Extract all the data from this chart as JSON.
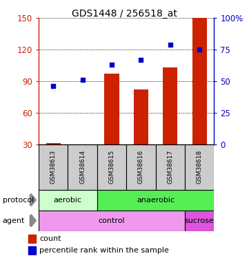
{
  "title": "GDS1448 / 256518_at",
  "samples": [
    "GSM38613",
    "GSM38614",
    "GSM38615",
    "GSM38616",
    "GSM38617",
    "GSM38618"
  ],
  "count_values": [
    31,
    29,
    97,
    82,
    103,
    150
  ],
  "percentile_values": [
    46,
    51,
    63,
    67,
    79,
    75
  ],
  "left_ylim": [
    30,
    150
  ],
  "left_yticks": [
    30,
    60,
    90,
    120,
    150
  ],
  "right_ylim": [
    0,
    100
  ],
  "right_yticks": [
    0,
    25,
    50,
    75,
    100
  ],
  "right_yticklabels": [
    "0",
    "25",
    "50",
    "75",
    "100%"
  ],
  "bar_color": "#cc2200",
  "scatter_color": "#0000cc",
  "protocol_labels": [
    [
      "aerobic",
      0,
      2
    ],
    [
      "anaerobic",
      2,
      6
    ]
  ],
  "protocol_color_aerobic": "#ccffcc",
  "protocol_color_anaerobic": "#55ee55",
  "agent_labels": [
    [
      "control",
      0,
      5
    ],
    [
      "sucrose",
      5,
      6
    ]
  ],
  "agent_color_control": "#ee99ee",
  "agent_color_sucrose": "#dd55dd",
  "xlabel_row_color": "#cccccc",
  "legend_count_color": "#cc2200",
  "legend_pct_color": "#0000cc"
}
